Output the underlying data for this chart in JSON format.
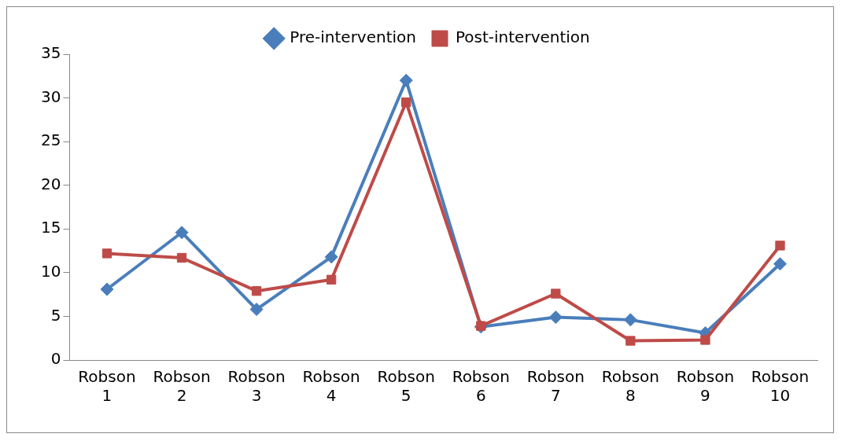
{
  "chart_data": {
    "type": "line",
    "categories": [
      "Robson 1",
      "Robson 2",
      "Robson 3",
      "Robson 4",
      "Robson 5",
      "Robson 6",
      "Robson 7",
      "Robson 8",
      "Robson 9",
      "Robson 10"
    ],
    "series": [
      {
        "name": "Pre-intervention",
        "color": "#4a7ebb",
        "marker": "diamond",
        "values": [
          8.1,
          14.6,
          5.8,
          11.8,
          32.0,
          3.8,
          4.9,
          4.6,
          3.1,
          11.0
        ]
      },
      {
        "name": "Post-intervention",
        "color": "#be4b48",
        "marker": "square",
        "values": [
          12.2,
          11.7,
          7.9,
          9.2,
          29.5,
          3.9,
          7.6,
          2.2,
          2.3,
          13.1
        ]
      }
    ],
    "ylim": [
      0,
      35
    ],
    "yticks": [
      0,
      5,
      10,
      15,
      20,
      25,
      30,
      35
    ],
    "grid": false,
    "legend": "top",
    "line_style": "solid"
  }
}
